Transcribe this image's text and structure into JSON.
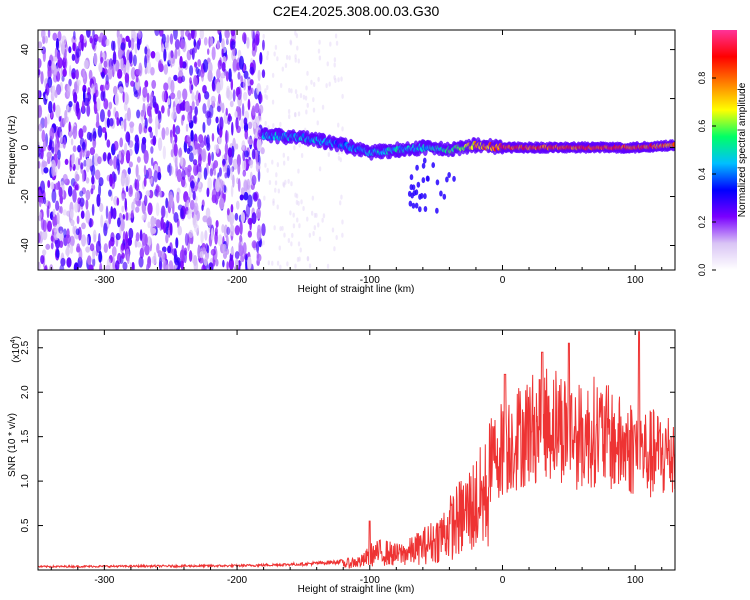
{
  "figure_title": "C2E4.2025.308.00.03.G30",
  "chart_data": [
    {
      "type": "heatmap",
      "title": "C2E4.2025.308.00.03.G30",
      "xlabel": "Height of straight line (km)",
      "ylabel": "Frequency (Hz)",
      "xlim": [
        -350,
        130
      ],
      "ylim": [
        -50,
        48
      ],
      "x_ticks": [
        -300,
        -200,
        -100,
        0,
        100
      ],
      "y_ticks": [
        -40,
        -20,
        0,
        20,
        40
      ],
      "colorbar": {
        "label": "Normalized spectral amplitude",
        "range": [
          0,
          1
        ],
        "ticks": [
          "0.0",
          "0.2",
          "0.4",
          "0.6",
          "0.8"
        ],
        "tick_values": [
          0,
          0.2,
          0.4,
          0.6,
          0.8
        ],
        "colormap": [
          "#ffffff",
          "#d9c4f5",
          "#7a00ff",
          "#0000ff",
          "#00bfff",
          "#00ff66",
          "#ffff00",
          "#ff8000",
          "#ff0000",
          "#ff3399"
        ]
      },
      "ridge": {
        "description_points_x": [
          -180,
          -150,
          -120,
          -100,
          -80,
          -60,
          -40,
          -20,
          0,
          50,
          100,
          130
        ],
        "description_points_freq": [
          5,
          4,
          1,
          -2,
          -1,
          0,
          -1,
          1,
          0,
          0,
          0,
          1
        ],
        "peak_amplitude": [
          0.5,
          0.5,
          0.45,
          0.5,
          0.55,
          0.5,
          0.6,
          0.8,
          0.95,
          0.95,
          0.95,
          0.9
        ]
      },
      "noise_region_x": [
        -350,
        -180
      ]
    },
    {
      "type": "line",
      "xlabel": "Height of straight line (km)",
      "ylabel": "SNR (10 * v/v)",
      "y_scale_label": "(x10",
      "y_scale_exp": "4",
      "y_scale_close": ")",
      "xlim": [
        -350,
        130
      ],
      "ylim": [
        0,
        2.7
      ],
      "x_ticks": [
        -300,
        -200,
        -100,
        0,
        100
      ],
      "y_ticks": [
        0.5,
        1.0,
        1.5,
        2.0,
        2.5
      ],
      "y_tick_labels": [
        "0.5",
        "1.0",
        "1.5",
        "2.0",
        "2.5"
      ],
      "series_color": "#ee3333",
      "envelope_x": [
        -350,
        -200,
        -150,
        -120,
        -105,
        -100,
        -90,
        -80,
        -70,
        -60,
        -50,
        -40,
        -30,
        -20,
        -10,
        0,
        10,
        20,
        30,
        40,
        50,
        60,
        70,
        80,
        90,
        100,
        110,
        120,
        130
      ],
      "envelope_y": [
        0.04,
        0.05,
        0.07,
        0.1,
        0.15,
        0.25,
        0.3,
        0.25,
        0.3,
        0.4,
        0.5,
        0.7,
        0.9,
        1.1,
        1.3,
        1.5,
        1.6,
        1.7,
        1.8,
        1.8,
        1.7,
        1.6,
        1.7,
        1.6,
        1.5,
        1.5,
        1.4,
        1.4,
        1.4
      ],
      "peaks": [
        [
          -100,
          0.55
        ],
        [
          2,
          2.2
        ],
        [
          30,
          2.45
        ],
        [
          50,
          2.55
        ],
        [
          103,
          2.68
        ]
      ]
    }
  ]
}
